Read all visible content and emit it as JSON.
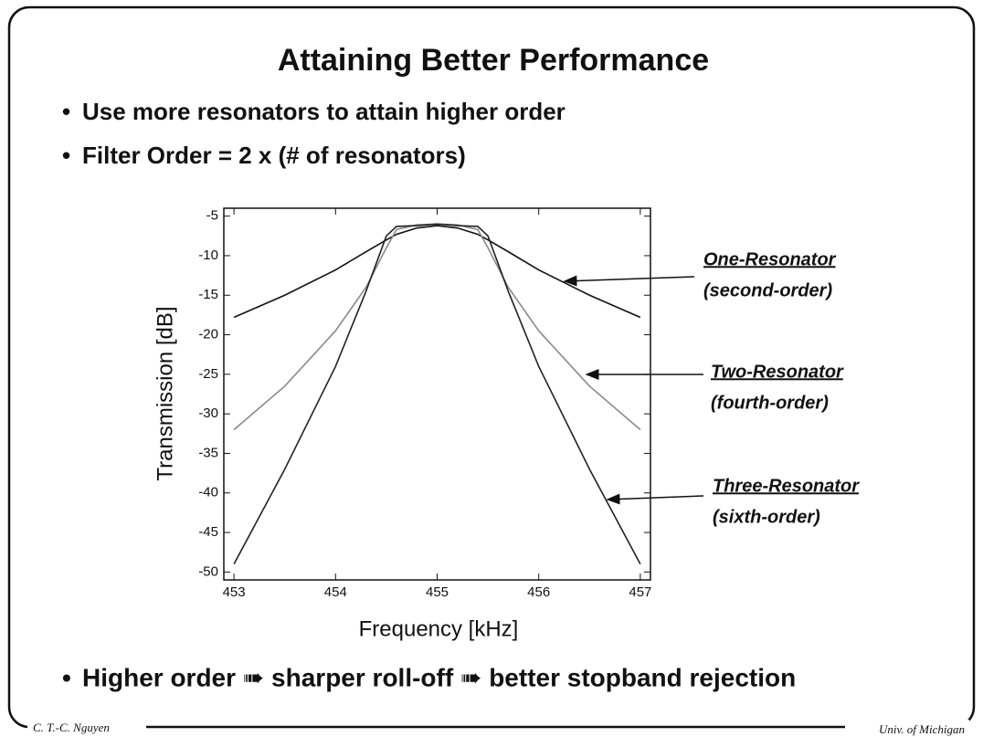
{
  "slide": {
    "title": "Attaining Better Performance",
    "bullets": [
      "Use more resonators to attain higher order",
      "Filter Order = 2 x (# of resonators)"
    ],
    "conclusion": "Higher order ➠ sharper roll-off ➠ better stopband rejection",
    "footer_left": "C. T.-C. Nguyen",
    "footer_right": "Univ. of Michigan"
  },
  "chart_data": {
    "type": "line",
    "x_label": "Frequency [kHz]",
    "y_label": "Transmission [dB]",
    "x": [
      453,
      453.5,
      454,
      454.3,
      454.5,
      454.6,
      454.8,
      455,
      455.2,
      455.4,
      455.5,
      455.7,
      456,
      456.5,
      457
    ],
    "series": [
      {
        "name": "One-Resonator",
        "color": "#111111",
        "values": [
          -17.8,
          -15,
          -11.8,
          -9.5,
          -8,
          -7.3,
          -6.5,
          -6.2,
          -6.5,
          -7.3,
          -8,
          -9.5,
          -11.8,
          -15,
          -17.8
        ]
      },
      {
        "name": "Two-Resonator",
        "color": "#8a8a8a",
        "values": [
          -32,
          -26.5,
          -19.5,
          -14,
          -9,
          -6.7,
          -6.1,
          -6.0,
          -6.1,
          -6.7,
          -9,
          -14,
          -19.5,
          -26.5,
          -32
        ]
      },
      {
        "name": "Three-Resonator",
        "color": "#222222",
        "values": [
          -49,
          -37,
          -24,
          -14.5,
          -7.5,
          -6.3,
          -6.2,
          -6.0,
          -6.2,
          -6.3,
          -7.5,
          -14.5,
          -24,
          -37,
          -49
        ]
      }
    ],
    "annotations": [
      {
        "label": "One-Resonator",
        "note": "(second-order)"
      },
      {
        "label": "Two-Resonator",
        "note": "(fourth-order)"
      },
      {
        "label": "Three-Resonator",
        "note": "(sixth-order)"
      }
    ],
    "xlim": [
      452.9,
      457.1
    ],
    "xticks": [
      453,
      454,
      455,
      456,
      457
    ],
    "ylim": [
      -51,
      -4
    ],
    "yticks": [
      -5,
      -10,
      -15,
      -20,
      -25,
      -30,
      -35,
      -40,
      -45,
      -50
    ]
  }
}
